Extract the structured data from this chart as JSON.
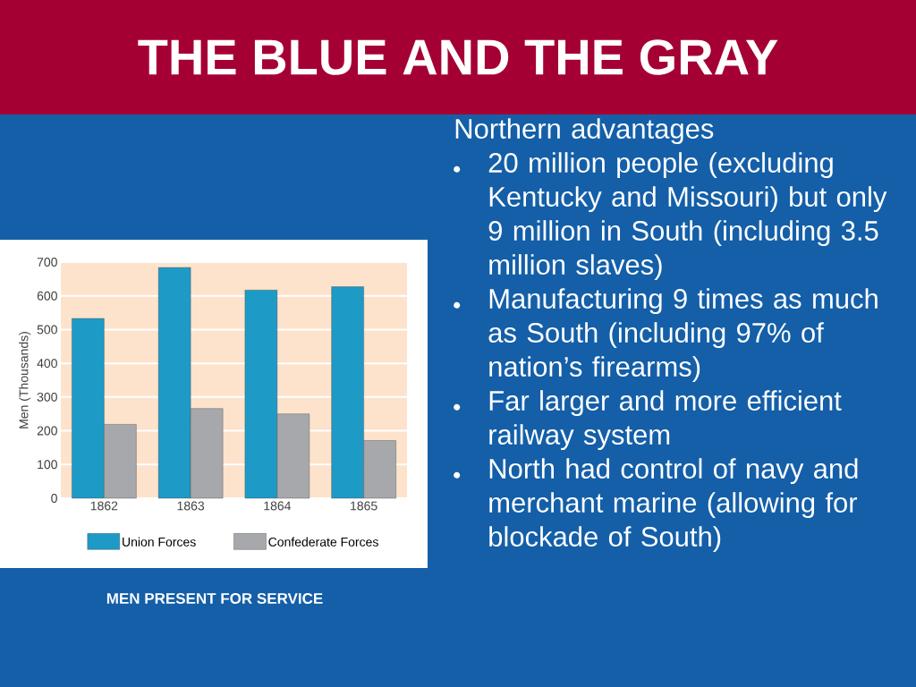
{
  "chart_data": {
    "type": "bar",
    "title": "THE BLUE AND THE GRAY",
    "categories": [
      "1862",
      "1863",
      "1864",
      "1865"
    ],
    "series": [
      {
        "name": "Union Forces",
        "color": "#1e9ac6",
        "values": [
          533,
          684,
          617,
          627
        ]
      },
      {
        "name": "Confederate Forces",
        "color": "#a7a8ac",
        "values": [
          219,
          266,
          250,
          171
        ]
      }
    ],
    "ylabel": "Men (Thousands)",
    "ylim": [
      0,
      700
    ],
    "yticks": [
      0,
      100,
      200,
      300,
      400,
      500,
      600,
      700
    ],
    "grid": "y",
    "legend": "bottom",
    "annotations": [
      "MEN PRESENT FOR SERVICE",
      "Northern advantages",
      "20 million people (excluding Kentucky and Missouri) but only 9 million in South (including 3.5 million slaves)",
      "Manufacturing 9 times as much as South (including 97% of nation’s firearms)",
      "Far larger and more efficient railway system",
      "North had control of navy and merchant marine (allowing for blockade of South)"
    ]
  }
}
